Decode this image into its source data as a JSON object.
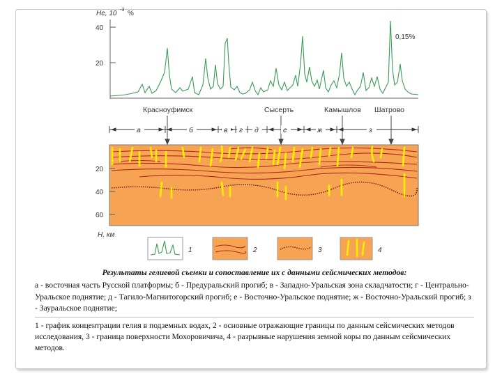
{
  "graph": {
    "axis_label_he": "He, 10",
    "axis_exp": "-3",
    "axis_unit": "%",
    "tick_40": "40",
    "tick_20": "20",
    "annotation_peak": "0,15%"
  },
  "towns": [
    "Красноуфимск",
    "Сысерть",
    "Камышлов",
    "Шатрово"
  ],
  "zones": [
    "а",
    "б",
    "в",
    "г",
    "д",
    "е",
    "ж",
    "з"
  ],
  "section": {
    "depth_ticks": [
      "20",
      "40",
      "60"
    ],
    "depth_label": "H, км"
  },
  "legend": [
    "1",
    "2",
    "3",
    "4"
  ],
  "colors": {
    "section_fill": "#f6a454",
    "reflectors": "#b3261e",
    "faults": "#ffee00",
    "graph_line": "#3a9a55"
  },
  "caption": {
    "title": "Результаты гелиевой съемки и сопоставление их с данными сейсмических методов:",
    "zones_text": "а - восточная часть Русской платформы; б - Предуральский прогиб; в - Западно-Уральская зона складчатости; г - Центрально-Уральское поднятие; д - Тагило-Магнитогорский прогиб; е - Восточно-Уральское поднятие; ж - Восточно-Уральский прогиб; з - Зауральское поднятие;",
    "legend_text": "1 - график концентрации гелия в подземных водах, 2 - основные отражающие границы по данным сейсмических методов исследования, 3 - граница поверхности Мохоровичича, 4 - разрывные нарушения земной коры по данным сейсмических методов."
  }
}
